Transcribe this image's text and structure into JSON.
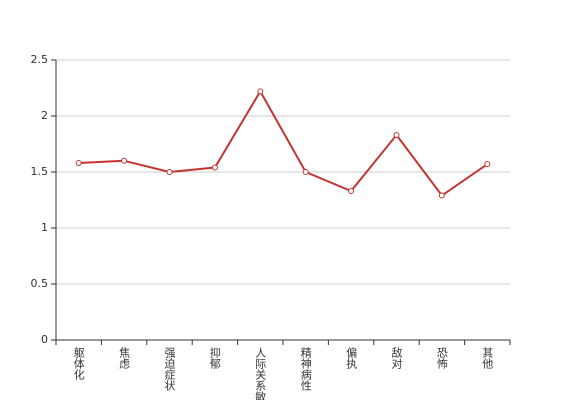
{
  "chart_data": {
    "type": "line",
    "categories": [
      "躯体化",
      "焦虑",
      "强迫症状",
      "抑郁",
      "人际关系敏感",
      "精神病性",
      "偏执",
      "敌对",
      "恐怖",
      "其他"
    ],
    "values": [
      1.58,
      1.6,
      1.5,
      1.54,
      2.22,
      1.5,
      1.33,
      1.83,
      1.29,
      1.57
    ],
    "color": "#c23531",
    "ylim": [
      0,
      2.5
    ],
    "yticks": [
      0,
      0.5,
      1,
      1.5,
      2,
      2.5
    ],
    "grid": true
  }
}
